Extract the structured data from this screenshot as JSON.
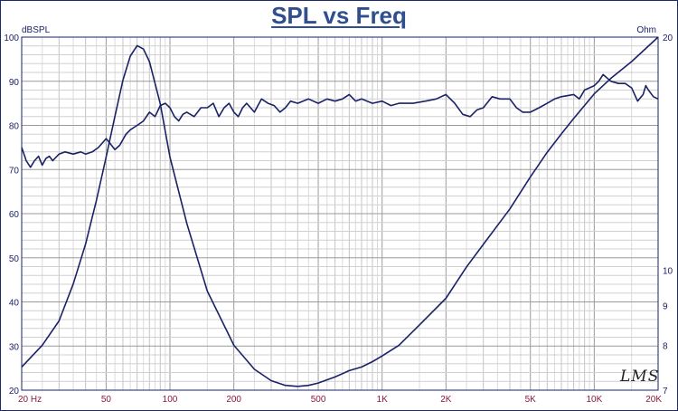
{
  "chart_data": {
    "type": "line",
    "title": "SPL vs Freq",
    "xlabel": "",
    "ylabel_left": "dBSPL",
    "ylabel_right": "Ohm",
    "x_scale": "log",
    "xlim": [
      20,
      20000
    ],
    "ylim_left": [
      20,
      100
    ],
    "ylim_right": [
      7,
      20
    ],
    "y_right_scale": "log",
    "grid": true,
    "x_tick_labels": [
      {
        "v": 20,
        "t": "20  Hz"
      },
      {
        "v": 50,
        "t": "50"
      },
      {
        "v": 100,
        "t": "100"
      },
      {
        "v": 200,
        "t": "200"
      },
      {
        "v": 500,
        "t": "500"
      },
      {
        "v": 1000,
        "t": "1K"
      },
      {
        "v": 2000,
        "t": "2K"
      },
      {
        "v": 5000,
        "t": "5K"
      },
      {
        "v": 10000,
        "t": "10K"
      },
      {
        "v": 20000,
        "t": "20K"
      }
    ],
    "y_left_ticks": [
      20,
      30,
      40,
      50,
      60,
      70,
      80,
      90,
      100
    ],
    "y_right_ticks": [
      7,
      8,
      9,
      10,
      20
    ],
    "series": [
      {
        "axis": "left",
        "color": "#1a2266",
        "points": [
          [
            20,
            75
          ],
          [
            21,
            72
          ],
          [
            22,
            70.5
          ],
          [
            23,
            72
          ],
          [
            24,
            73
          ],
          [
            25,
            71
          ],
          [
            26,
            72.5
          ],
          [
            27,
            73
          ],
          [
            28,
            72
          ],
          [
            30,
            73.5
          ],
          [
            32,
            74
          ],
          [
            35,
            73.5
          ],
          [
            38,
            74
          ],
          [
            40,
            73.5
          ],
          [
            43,
            74
          ],
          [
            46,
            75
          ],
          [
            48,
            76
          ],
          [
            50,
            77
          ],
          [
            52,
            76
          ],
          [
            55,
            74.5
          ],
          [
            58,
            75.5
          ],
          [
            62,
            78
          ],
          [
            65,
            79
          ],
          [
            70,
            80
          ],
          [
            75,
            81
          ],
          [
            80,
            83
          ],
          [
            85,
            82
          ],
          [
            90,
            84.5
          ],
          [
            95,
            85
          ],
          [
            100,
            84
          ],
          [
            105,
            82
          ],
          [
            110,
            81
          ],
          [
            115,
            82.5
          ],
          [
            120,
            83
          ],
          [
            130,
            82
          ],
          [
            140,
            84
          ],
          [
            150,
            84
          ],
          [
            160,
            85
          ],
          [
            170,
            82
          ],
          [
            180,
            84
          ],
          [
            190,
            85
          ],
          [
            200,
            83
          ],
          [
            210,
            82
          ],
          [
            220,
            84
          ],
          [
            230,
            85
          ],
          [
            250,
            83
          ],
          [
            270,
            86
          ],
          [
            290,
            85
          ],
          [
            310,
            84.5
          ],
          [
            330,
            83
          ],
          [
            350,
            84
          ],
          [
            370,
            85.5
          ],
          [
            400,
            85
          ],
          [
            450,
            86
          ],
          [
            500,
            85
          ],
          [
            550,
            86
          ],
          [
            600,
            85.5
          ],
          [
            650,
            86
          ],
          [
            700,
            87
          ],
          [
            750,
            85.5
          ],
          [
            800,
            86
          ],
          [
            900,
            85
          ],
          [
            1000,
            85.5
          ],
          [
            1100,
            84.5
          ],
          [
            1200,
            85
          ],
          [
            1400,
            85
          ],
          [
            1600,
            85.5
          ],
          [
            1800,
            86
          ],
          [
            2000,
            87
          ],
          [
            2200,
            85
          ],
          [
            2400,
            82.5
          ],
          [
            2600,
            82
          ],
          [
            2800,
            83.5
          ],
          [
            3000,
            84
          ],
          [
            3300,
            86.5
          ],
          [
            3600,
            86
          ],
          [
            4000,
            86
          ],
          [
            4300,
            84
          ],
          [
            4600,
            83
          ],
          [
            5000,
            83
          ],
          [
            5500,
            84
          ],
          [
            6000,
            85
          ],
          [
            6500,
            86
          ],
          [
            7000,
            86.5
          ],
          [
            8000,
            87
          ],
          [
            8500,
            86
          ],
          [
            9000,
            88
          ],
          [
            10000,
            89
          ],
          [
            10500,
            90
          ],
          [
            11000,
            91.5
          ],
          [
            12000,
            90
          ],
          [
            13000,
            89.5
          ],
          [
            14000,
            89.5
          ],
          [
            15000,
            88.5
          ],
          [
            16000,
            85.5
          ],
          [
            17000,
            87
          ],
          [
            17500,
            89
          ],
          [
            18000,
            88
          ],
          [
            19000,
            86.5
          ],
          [
            20000,
            86
          ]
        ]
      },
      {
        "axis": "right",
        "color": "#1a2266",
        "points": [
          [
            20,
            7.5
          ],
          [
            25,
            8.0
          ],
          [
            30,
            8.6
          ],
          [
            35,
            9.6
          ],
          [
            40,
            10.8
          ],
          [
            45,
            12.3
          ],
          [
            50,
            14.0
          ],
          [
            55,
            15.8
          ],
          [
            60,
            17.6
          ],
          [
            65,
            18.9
          ],
          [
            70,
            19.5
          ],
          [
            75,
            19.3
          ],
          [
            80,
            18.6
          ],
          [
            90,
            16.4
          ],
          [
            100,
            14.0
          ],
          [
            120,
            11.5
          ],
          [
            150,
            9.4
          ],
          [
            200,
            8.0
          ],
          [
            250,
            7.45
          ],
          [
            300,
            7.2
          ],
          [
            350,
            7.1
          ],
          [
            400,
            7.08
          ],
          [
            450,
            7.1
          ],
          [
            500,
            7.15
          ],
          [
            600,
            7.28
          ],
          [
            700,
            7.42
          ],
          [
            800,
            7.5
          ],
          [
            900,
            7.62
          ],
          [
            1000,
            7.75
          ],
          [
            1200,
            8.0
          ],
          [
            1500,
            8.5
          ],
          [
            2000,
            9.2
          ],
          [
            2500,
            10.1
          ],
          [
            3000,
            10.8
          ],
          [
            4000,
            12.0
          ],
          [
            5000,
            13.2
          ],
          [
            6000,
            14.2
          ],
          [
            7000,
            15.0
          ],
          [
            8000,
            15.7
          ],
          [
            10000,
            16.9
          ],
          [
            12000,
            17.7
          ],
          [
            15000,
            18.6
          ],
          [
            20000,
            20.0
          ]
        ]
      }
    ]
  },
  "logo_text": "LMS"
}
